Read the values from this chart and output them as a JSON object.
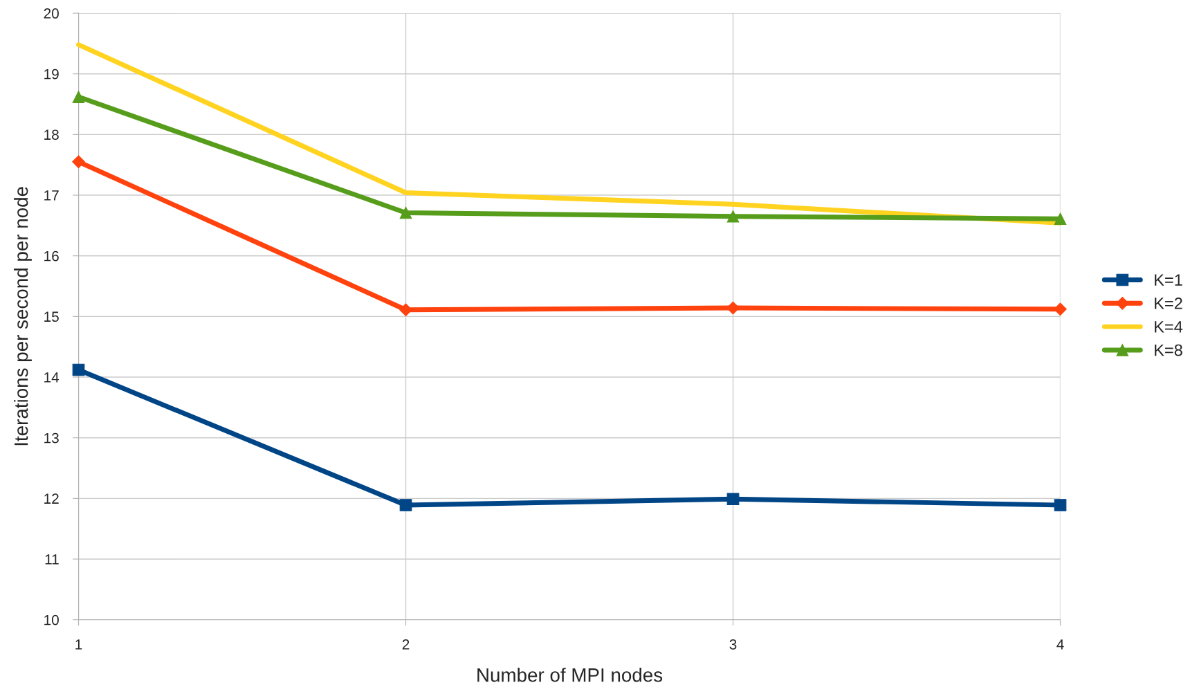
{
  "chart_data": {
    "type": "line",
    "xlabel": "Number of MPI nodes",
    "ylabel": "Iterations per second per node",
    "x": [
      1,
      2,
      3,
      4
    ],
    "xlim": [
      1,
      4
    ],
    "xticks": [
      1,
      2,
      3,
      4
    ],
    "ylim": [
      10,
      20
    ],
    "yticks": [
      10,
      11,
      12,
      13,
      14,
      15,
      16,
      17,
      18,
      19,
      20
    ],
    "grid": true,
    "legend": "right",
    "series": [
      {
        "name": "K=1",
        "color": "#004586",
        "marker": "square",
        "values": [
          14.12,
          11.89,
          11.99,
          11.89
        ]
      },
      {
        "name": "K=2",
        "color": "#ff420e",
        "marker": "diamond",
        "values": [
          17.55,
          15.11,
          15.14,
          15.12
        ]
      },
      {
        "name": "K=4",
        "color": "#ffd320",
        "marker": "none",
        "values": [
          19.48,
          17.04,
          16.85,
          16.54
        ]
      },
      {
        "name": "K=8",
        "color": "#579d1c",
        "marker": "triangle",
        "values": [
          18.62,
          16.71,
          16.65,
          16.61
        ]
      }
    ]
  }
}
